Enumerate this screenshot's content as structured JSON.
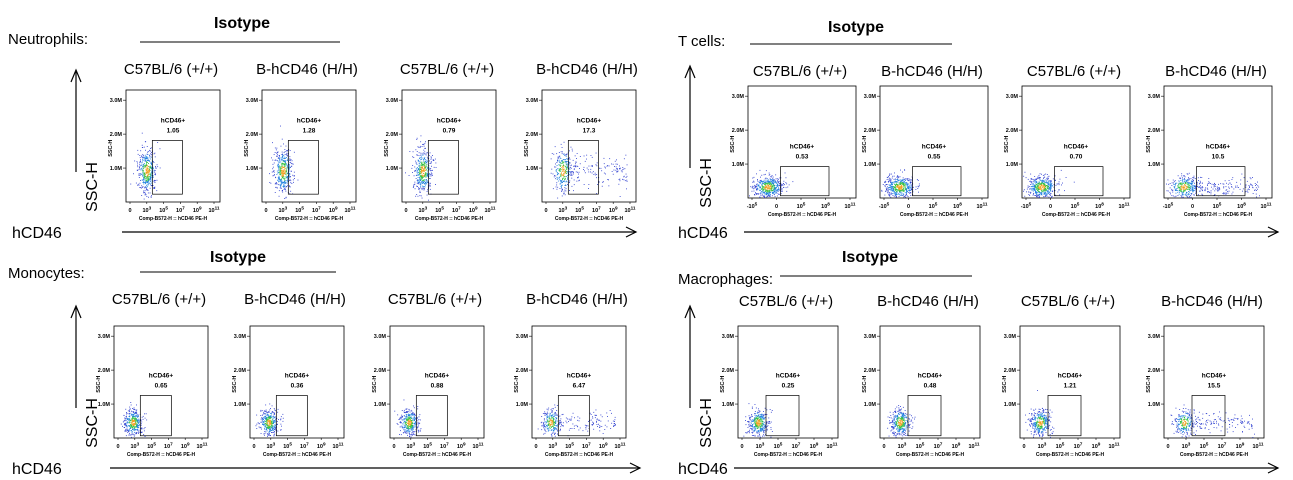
{
  "panels": [
    {
      "cell_label": "Neutrophils:",
      "isotype_label": "Isotype",
      "yaxis_label": "SSC-H",
      "xaxis_label": "hCD46",
      "column_titles": [
        "C57BL/6 (+/+)",
        "B-hCD46 (H/H)",
        "C57BL/6 (+/+)",
        "B-hCD46 (H/H)"
      ]
    },
    {
      "cell_label": "T cells:",
      "isotype_label": "Isotype",
      "yaxis_label": "SSC-H",
      "xaxis_label": "hCD46",
      "column_titles": [
        "C57BL/6 (+/+)",
        "B-hCD46 (H/H)",
        "C57BL/6 (+/+)",
        "B-hCD46 (H/H)"
      ]
    },
    {
      "cell_label": "Monocytes:",
      "isotype_label": "Isotype",
      "yaxis_label": "SSC-H",
      "xaxis_label": "hCD46",
      "column_titles": [
        "C57BL/6 (+/+)",
        "B-hCD46 (H/H)",
        "C57BL/6 (+/+)",
        "B-hCD46 (H/H)"
      ]
    },
    {
      "cell_label": "Macrophages:",
      "isotype_label": "Isotype",
      "yaxis_label": "SSC-H",
      "xaxis_label": "hCD46",
      "column_titles": [
        "C57BL/6 (+/+)",
        "B-hCD46 (H/H)",
        "C57BL/6 (+/+)",
        "B-hCD46 (H/H)"
      ]
    }
  ],
  "chart_data": [
    {
      "type": "scatter",
      "subtype": "flow-cytometry-dot-plot",
      "panel": "Neutrophils",
      "xlabel": "Comp-B572-H :: hCD46 PE-H",
      "ylabel": "SSC-H",
      "x_ticks": [
        "0",
        "10^3",
        "10^5",
        "10^7",
        "10^9",
        "10^11"
      ],
      "y_ticks": [
        "1.0M",
        "2.0M",
        "3.0M"
      ],
      "x_scale": "log",
      "gate_label": "hCD46+",
      "plots": [
        {
          "title": "C57BL/6 (+/+)",
          "gate_percent": "1.05"
        },
        {
          "title": "B-hCD46 (H/H)",
          "gate_percent": "1.28"
        },
        {
          "title": "C57BL/6 (+/+)",
          "gate_percent": "0.79"
        },
        {
          "title": "B-hCD46 (H/H)",
          "gate_percent": "17.3"
        }
      ]
    },
    {
      "type": "scatter",
      "subtype": "flow-cytometry-dot-plot",
      "panel": "T cells",
      "xlabel": "Comp-B572-H :: hCD46 PE-H",
      "ylabel": "SSC-H",
      "x_ticks": [
        "-10^5",
        "0",
        "10^5",
        "10^8",
        "10^11"
      ],
      "y_ticks": [
        "1.0M",
        "2.0M",
        "3.0M"
      ],
      "x_scale": "log",
      "gate_label": "hCD46+",
      "plots": [
        {
          "title": "C57BL/6 (+/+)",
          "gate_percent": "0.53"
        },
        {
          "title": "B-hCD46 (H/H)",
          "gate_percent": "0.55"
        },
        {
          "title": "C57BL/6 (+/+)",
          "gate_percent": "0.70"
        },
        {
          "title": "B-hCD46 (H/H)",
          "gate_percent": "10.5"
        }
      ]
    },
    {
      "type": "scatter",
      "subtype": "flow-cytometry-dot-plot",
      "panel": "Monocytes",
      "xlabel": "Comp-B572-H :: hCD46 PE-H",
      "ylabel": "SSC-H",
      "x_ticks": [
        "0",
        "10^3",
        "10^5",
        "10^7",
        "10^9",
        "10^11"
      ],
      "y_ticks": [
        "1.0M",
        "2.0M",
        "3.0M"
      ],
      "x_scale": "log",
      "gate_label": "hCD46+",
      "plots": [
        {
          "title": "C57BL/6 (+/+)",
          "gate_percent": "0.65"
        },
        {
          "title": "B-hCD46 (H/H)",
          "gate_percent": "0.36"
        },
        {
          "title": "C57BL/6 (+/+)",
          "gate_percent": "0.88"
        },
        {
          "title": "B-hCD46 (H/H)",
          "gate_percent": "6.47"
        }
      ]
    },
    {
      "type": "scatter",
      "subtype": "flow-cytometry-dot-plot",
      "panel": "Macrophages",
      "xlabel": "Comp-B572-H :: hCD46 PE-H",
      "ylabel": "SSC-H",
      "x_ticks": [
        "0",
        "10^3",
        "10^5",
        "10^7",
        "10^9",
        "10^11"
      ],
      "y_ticks": [
        "1.0M",
        "2.0M",
        "3.0M"
      ],
      "x_scale": "log",
      "gate_label": "hCD46+",
      "plots": [
        {
          "title": "C57BL/6 (+/+)",
          "gate_percent": "0.25"
        },
        {
          "title": "B-hCD46 (H/H)",
          "gate_percent": "0.48"
        },
        {
          "title": "C57BL/6 (+/+)",
          "gate_percent": "1.21"
        },
        {
          "title": "B-hCD46 (H/H)",
          "gate_percent": "15.5"
        }
      ]
    }
  ]
}
